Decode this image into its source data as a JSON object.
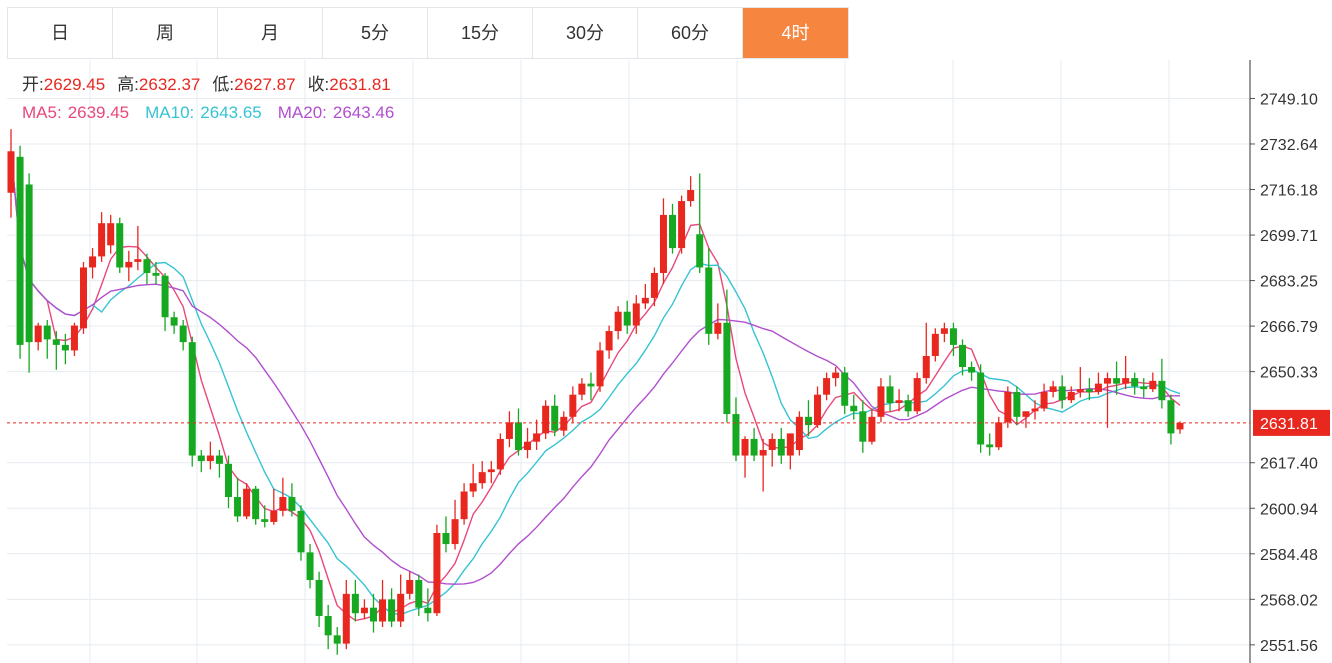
{
  "tabs": [
    {
      "label": "日",
      "active": false
    },
    {
      "label": "周",
      "active": false
    },
    {
      "label": "月",
      "active": false
    },
    {
      "label": "5分",
      "active": false
    },
    {
      "label": "15分",
      "active": false
    },
    {
      "label": "30分",
      "active": false
    },
    {
      "label": "60分",
      "active": false
    },
    {
      "label": "4时",
      "active": true
    }
  ],
  "ohlc_info": {
    "open_label": "开:",
    "open": "2629.45",
    "high_label": "高:",
    "high": "2632.37",
    "low_label": "低:",
    "low": "2627.87",
    "close_label": "收:",
    "close": "2631.81"
  },
  "ma_info": {
    "ma5_label": "MA5:",
    "ma5": "2639.45",
    "ma10_label": "MA10:",
    "ma10": "2643.65",
    "ma20_label": "MA20:",
    "ma20": "2643.46"
  },
  "colors": {
    "up": "#e8271f",
    "down": "#17a821",
    "active_tab": "#f5853f",
    "ma5": "#e8487a",
    "ma10": "#36c3d3",
    "ma20": "#b24fcf",
    "grid": "#e6ecf0"
  },
  "chart_data": {
    "type": "candlestick",
    "current_price": 2631.81,
    "current_price_label": "2631.81",
    "ylim": [
      2545,
      2763
    ],
    "y_ticks": [
      2749.1,
      2732.64,
      2716.18,
      2699.71,
      2683.25,
      2666.79,
      2650.33,
      2617.4,
      2600.94,
      2584.48,
      2568.02,
      2551.56
    ],
    "y_tick_labels": [
      "2749.10",
      "2732.64",
      "2716.18",
      "2699.71",
      "2683.25",
      "2666.79",
      "2650.33",
      "2617.40",
      "2600.94",
      "2584.48",
      "2568.02",
      "2551.56"
    ],
    "ma_periods": [
      5,
      10,
      20
    ],
    "candles": [
      [
        2715,
        2738,
        2730,
        2706
      ],
      [
        2728,
        2732,
        2660,
        2655
      ],
      [
        2718,
        2722,
        2661,
        2650
      ],
      [
        2661,
        2668,
        2667,
        2658
      ],
      [
        2667,
        2669,
        2662,
        2655
      ],
      [
        2662,
        2665,
        2660,
        2651
      ],
      [
        2660,
        2664,
        2658,
        2653
      ],
      [
        2658,
        2668,
        2667,
        2656
      ],
      [
        2666,
        2690,
        2688,
        2664
      ],
      [
        2688,
        2695,
        2692,
        2684
      ],
      [
        2692,
        2708,
        2704,
        2690
      ],
      [
        2696,
        2707,
        2704,
        2693
      ],
      [
        2704,
        2706,
        2688,
        2686
      ],
      [
        2688,
        2694,
        2690,
        2683
      ],
      [
        2690,
        2703,
        2691,
        2687
      ],
      [
        2691,
        2693,
        2686,
        2682
      ],
      [
        2686,
        2690,
        2685,
        2682
      ],
      [
        2685,
        2686,
        2670,
        2665
      ],
      [
        2670,
        2672,
        2667,
        2664
      ],
      [
        2667,
        2669,
        2661,
        2658
      ],
      [
        2661,
        2663,
        2620,
        2616
      ],
      [
        2620,
        2622,
        2618,
        2614
      ],
      [
        2618,
        2625,
        2620,
        2615
      ],
      [
        2620,
        2622,
        2617,
        2612
      ],
      [
        2617,
        2620,
        2605,
        2601
      ],
      [
        2605,
        2612,
        2598,
        2596
      ],
      [
        2598,
        2610,
        2608,
        2597
      ],
      [
        2608,
        2609,
        2597,
        2595
      ],
      [
        2597,
        2602,
        2596,
        2594
      ],
      [
        2596,
        2608,
        2600,
        2595
      ],
      [
        2600,
        2612,
        2605,
        2598
      ],
      [
        2605,
        2610,
        2600,
        2598
      ],
      [
        2600,
        2602,
        2585,
        2582
      ],
      [
        2585,
        2588,
        2575,
        2572
      ],
      [
        2575,
        2578,
        2562,
        2558
      ],
      [
        2562,
        2566,
        2555,
        2550
      ],
      [
        2555,
        2558,
        2552,
        2548
      ],
      [
        2552,
        2575,
        2570,
        2550
      ],
      [
        2570,
        2575,
        2563,
        2560
      ],
      [
        2563,
        2568,
        2565,
        2561
      ],
      [
        2565,
        2570,
        2560,
        2556
      ],
      [
        2560,
        2575,
        2568,
        2558
      ],
      [
        2568,
        2572,
        2560,
        2558
      ],
      [
        2560,
        2577,
        2570,
        2558
      ],
      [
        2570,
        2578,
        2575,
        2568
      ],
      [
        2575,
        2577,
        2565,
        2562
      ],
      [
        2565,
        2572,
        2563,
        2560
      ],
      [
        2563,
        2595,
        2592,
        2562
      ],
      [
        2592,
        2598,
        2588,
        2585
      ],
      [
        2588,
        2604,
        2597,
        2586
      ],
      [
        2597,
        2610,
        2607,
        2595
      ],
      [
        2607,
        2617,
        2610,
        2605
      ],
      [
        2610,
        2618,
        2614,
        2608
      ],
      [
        2614,
        2618,
        2615,
        2610
      ],
      [
        2615,
        2628,
        2626,
        2613
      ],
      [
        2626,
        2636,
        2632,
        2623
      ],
      [
        2632,
        2637,
        2622,
        2620
      ],
      [
        2622,
        2630,
        2625,
        2619
      ],
      [
        2625,
        2633,
        2628,
        2622
      ],
      [
        2628,
        2640,
        2638,
        2626
      ],
      [
        2638,
        2642,
        2629,
        2627
      ],
      [
        2629,
        2636,
        2634,
        2627
      ],
      [
        2634,
        2645,
        2642,
        2632
      ],
      [
        2642,
        2648,
        2646,
        2640
      ],
      [
        2646,
        2650,
        2645,
        2640
      ],
      [
        2645,
        2661,
        2658,
        2643
      ],
      [
        2658,
        2667,
        2665,
        2655
      ],
      [
        2665,
        2674,
        2672,
        2662
      ],
      [
        2672,
        2676,
        2667,
        2664
      ],
      [
        2667,
        2678,
        2675,
        2664
      ],
      [
        2675,
        2682,
        2677,
        2673
      ],
      [
        2677,
        2688,
        2686,
        2674
      ],
      [
        2686,
        2713,
        2707,
        2682
      ],
      [
        2707,
        2711,
        2695,
        2693
      ],
      [
        2695,
        2714,
        2712,
        2693
      ],
      [
        2712,
        2721,
        2716,
        2710
      ],
      [
        2700,
        2722,
        2688,
        2686
      ],
      [
        2688,
        2695,
        2664,
        2660
      ],
      [
        2664,
        2675,
        2668,
        2662
      ],
      [
        2668,
        2680,
        2635,
        2632
      ],
      [
        2635,
        2641,
        2620,
        2618
      ],
      [
        2620,
        2627,
        2626,
        2612
      ],
      [
        2626,
        2630,
        2620,
        2618
      ],
      [
        2620,
        2626,
        2622,
        2607
      ],
      [
        2622,
        2628,
        2626,
        2616
      ],
      [
        2626,
        2630,
        2620,
        2617
      ],
      [
        2620,
        2628,
        2628,
        2615
      ],
      [
        2622,
        2636,
        2634,
        2620
      ],
      [
        2634,
        2640,
        2631,
        2627
      ],
      [
        2631,
        2645,
        2642,
        2630
      ],
      [
        2642,
        2650,
        2648,
        2640
      ],
      [
        2648,
        2652,
        2650,
        2645
      ],
      [
        2650,
        2652,
        2638,
        2635
      ],
      [
        2638,
        2642,
        2636,
        2633
      ],
      [
        2636,
        2640,
        2625,
        2621
      ],
      [
        2625,
        2637,
        2634,
        2624
      ],
      [
        2634,
        2648,
        2645,
        2632
      ],
      [
        2645,
        2649,
        2639,
        2636
      ],
      [
        2639,
        2644,
        2640,
        2636
      ],
      [
        2640,
        2642,
        2636,
        2634
      ],
      [
        2636,
        2650,
        2648,
        2635
      ],
      [
        2648,
        2668,
        2656,
        2646
      ],
      [
        2656,
        2666,
        2664,
        2654
      ],
      [
        2664,
        2668,
        2666,
        2661
      ],
      [
        2666,
        2668,
        2660,
        2656
      ],
      [
        2660,
        2662,
        2652,
        2649
      ],
      [
        2652,
        2654,
        2650,
        2647
      ],
      [
        2650,
        2653,
        2624,
        2621
      ],
      [
        2624,
        2628,
        2623,
        2620
      ],
      [
        2623,
        2634,
        2632,
        2622
      ],
      [
        2632,
        2645,
        2643,
        2630
      ],
      [
        2643,
        2645,
        2634,
        2631
      ],
      [
        2634,
        2636,
        2636,
        2630
      ],
      [
        2636,
        2640,
        2637,
        2633
      ],
      [
        2637,
        2646,
        2643,
        2636
      ],
      [
        2643,
        2647,
        2645,
        2641
      ],
      [
        2645,
        2649,
        2640,
        2637
      ],
      [
        2640,
        2645,
        2643,
        2639
      ],
      [
        2643,
        2652,
        2644,
        2641
      ],
      [
        2644,
        2648,
        2643,
        2640
      ],
      [
        2643,
        2650,
        2646,
        2642
      ],
      [
        2646,
        2650,
        2648,
        2630
      ],
      [
        2648,
        2654,
        2646,
        2642
      ],
      [
        2646,
        2656,
        2648,
        2644
      ],
      [
        2648,
        2650,
        2645,
        2642
      ],
      [
        2645,
        2648,
        2644,
        2641
      ],
      [
        2644,
        2650,
        2647,
        2643
      ],
      [
        2647,
        2655,
        2640,
        2637
      ],
      [
        2640,
        2642,
        2628,
        2624
      ],
      [
        2629.45,
        2632.37,
        2631.81,
        2627.87
      ]
    ]
  }
}
